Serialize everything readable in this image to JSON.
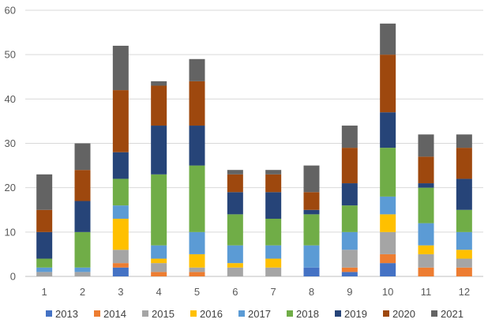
{
  "chart_data": {
    "type": "bar",
    "stacked": true,
    "title": "",
    "xlabel": "",
    "ylabel": "",
    "categories": [
      "1",
      "2",
      "3",
      "4",
      "5",
      "6",
      "7",
      "8",
      "9",
      "10",
      "11",
      "12"
    ],
    "ylim": [
      0,
      60
    ],
    "yticks": [
      0,
      10,
      20,
      30,
      40,
      50,
      60
    ],
    "grid": true,
    "legend_position": "bottom",
    "series": [
      {
        "name": "2013",
        "color": "#4472C4",
        "values": [
          0,
          0,
          2,
          0,
          0,
          0,
          0,
          2,
          1,
          3,
          0,
          0
        ]
      },
      {
        "name": "2014",
        "color": "#ED7D31",
        "values": [
          0,
          0,
          1,
          1,
          1,
          0,
          0,
          0,
          1,
          2,
          2,
          2
        ]
      },
      {
        "name": "2015",
        "color": "#A5A5A5",
        "values": [
          1,
          1,
          3,
          2,
          1,
          2,
          2,
          0,
          4,
          5,
          3,
          2
        ]
      },
      {
        "name": "2016",
        "color": "#FFC000",
        "values": [
          0,
          0,
          7,
          1,
          3,
          1,
          2,
          0,
          0,
          4,
          2,
          2
        ]
      },
      {
        "name": "2017",
        "color": "#5B9BD5",
        "values": [
          1,
          1,
          3,
          3,
          5,
          4,
          3,
          5,
          4,
          4,
          5,
          4
        ]
      },
      {
        "name": "2018",
        "color": "#70AD47",
        "values": [
          2,
          8,
          6,
          16,
          15,
          7,
          6,
          7,
          6,
          11,
          8,
          5
        ]
      },
      {
        "name": "2019",
        "color": "#264478",
        "values": [
          6,
          7,
          6,
          11,
          9,
          5,
          6,
          1,
          5,
          8,
          1,
          7
        ]
      },
      {
        "name": "2020",
        "color": "#9E480E",
        "values": [
          5,
          7,
          14,
          9,
          10,
          4,
          4,
          4,
          8,
          13,
          6,
          7
        ]
      },
      {
        "name": "2021",
        "color": "#636363",
        "values": [
          8,
          6,
          10,
          1,
          5,
          1,
          1,
          6,
          5,
          7,
          5,
          3
        ]
      }
    ]
  }
}
